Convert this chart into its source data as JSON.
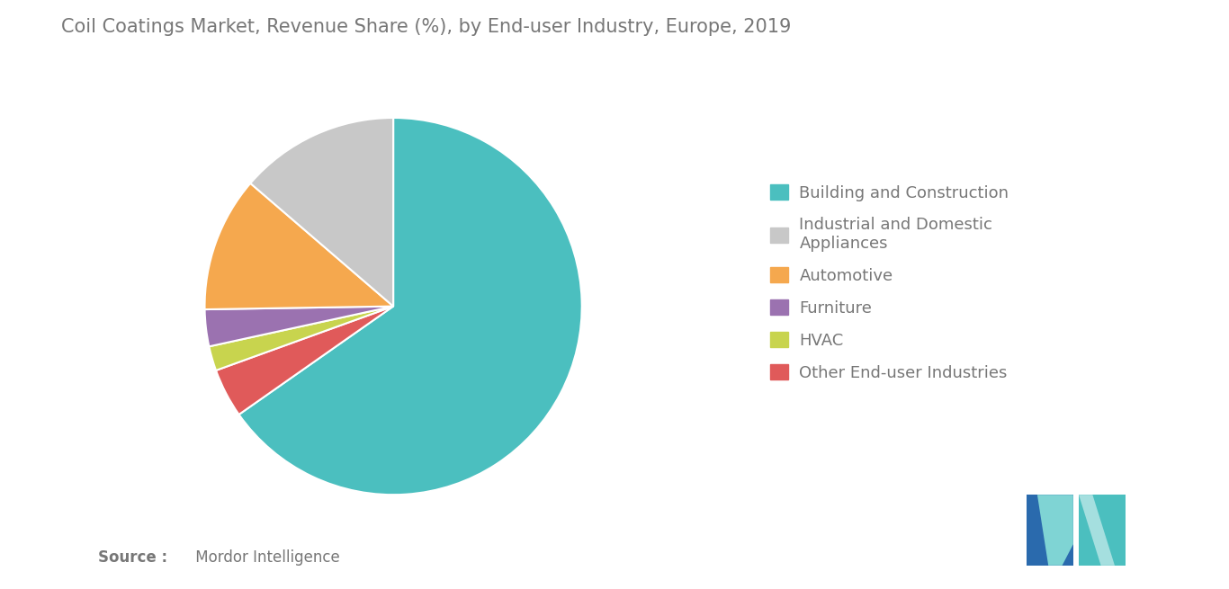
{
  "title": "Coil Coatings Market, Revenue Share (%), by End-user Industry, Europe, 2019",
  "title_fontsize": 15,
  "categories": [
    "Building and Construction",
    "Industrial and Domestic\nAppliances",
    "Automotive",
    "Furniture",
    "HVAC",
    "Other End-user Industries"
  ],
  "legend_labels": [
    "Building and Construction",
    "Industrial and Domestic\nAppliances",
    "Automotive",
    "Furniture",
    "HVAC",
    "Other End-user Industries"
  ],
  "values": [
    62,
    13,
    11,
    3,
    2,
    4
  ],
  "colors": [
    "#4bbfbf",
    "#c8c8c8",
    "#f5a84e",
    "#9b72b0",
    "#c8d44e",
    "#e05a5a"
  ],
  "background_color": "#ffffff",
  "text_color": "#777777",
  "legend_fontsize": 13,
  "source_bold": "Source :",
  "source_normal": " Mordor Intelligence",
  "source_fontsize": 12,
  "logo_left_color": "#2a6aad",
  "logo_right_color": "#4bbfbf",
  "logo_diagonal_color": "#7fd4d4"
}
